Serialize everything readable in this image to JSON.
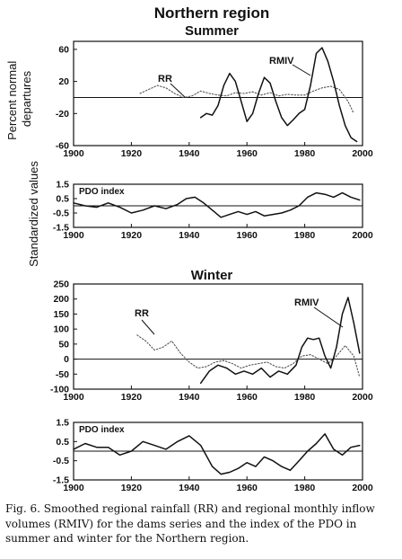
{
  "figure": {
    "title": "Northern region",
    "caption": "Fig. 6. Smoothed regional rainfall (RR) and regional monthly inflow volumes (RMIV) for the dams series and the index of the PDO in summer and winter for the Northern region.",
    "y_label_top": "Percent normal departures",
    "y_label_bottom": "Standardized values",
    "colors": {
      "rr": "#555555",
      "rmiv": "#111111",
      "pdo": "#111111"
    }
  },
  "chart_data": [
    {
      "id": "summer_flow",
      "type": "line",
      "title": "Summer",
      "ylabel": "Percent normal departures",
      "xlim": [
        1900,
        2000
      ],
      "ylim": [
        -60,
        70
      ],
      "xticks": [
        1900,
        1920,
        1940,
        1960,
        1980,
        2000
      ],
      "yticks": [
        -60,
        -20,
        20,
        60
      ],
      "annotations": [
        "RR",
        "RMIV"
      ],
      "series": [
        {
          "name": "RR",
          "style": "dotted",
          "x": [
            1923,
            1926,
            1929,
            1932,
            1935,
            1938,
            1941,
            1944,
            1947,
            1950,
            1953,
            1956,
            1959,
            1962,
            1965,
            1968,
            1971,
            1974,
            1977,
            1980,
            1983,
            1986,
            1989,
            1992,
            1995,
            1997
          ],
          "y": [
            5,
            10,
            15,
            12,
            5,
            0,
            2,
            8,
            5,
            3,
            2,
            6,
            5,
            7,
            3,
            6,
            2,
            4,
            3,
            3,
            8,
            12,
            14,
            10,
            -5,
            -20
          ]
        },
        {
          "name": "RMIV",
          "style": "solid",
          "x": [
            1944,
            1946,
            1948,
            1950,
            1952,
            1954,
            1956,
            1958,
            1960,
            1962,
            1964,
            1966,
            1968,
            1970,
            1972,
            1974,
            1976,
            1978,
            1980,
            1982,
            1984,
            1986,
            1988,
            1990,
            1992,
            1994,
            1996,
            1998
          ],
          "y": [
            -25,
            -20,
            -22,
            -10,
            15,
            30,
            20,
            -5,
            -30,
            -20,
            5,
            25,
            18,
            -5,
            -25,
            -35,
            -28,
            -20,
            -15,
            15,
            55,
            62,
            45,
            20,
            -10,
            -35,
            -50,
            -55
          ]
        }
      ]
    },
    {
      "id": "summer_pdo",
      "type": "line",
      "title": "",
      "annotations": [
        "PDO index"
      ],
      "xlim": [
        1900,
        2000
      ],
      "ylim": [
        -1.5,
        1.5
      ],
      "xticks": [
        1900,
        1920,
        1940,
        1960,
        1980,
        2000
      ],
      "yticks": [
        -1.5,
        -0.5,
        0.5,
        1.5
      ],
      "series": [
        {
          "name": "PDO index",
          "style": "solid",
          "x": [
            1900,
            1904,
            1908,
            1912,
            1916,
            1920,
            1924,
            1928,
            1932,
            1936,
            1939,
            1942,
            1945,
            1948,
            1951,
            1954,
            1957,
            1960,
            1963,
            1966,
            1969,
            1972,
            1975,
            1978,
            1981,
            1984,
            1987,
            1990,
            1993,
            1996,
            1999
          ],
          "y": [
            0.2,
            0.0,
            -0.1,
            0.2,
            -0.1,
            -0.5,
            -0.3,
            0.0,
            -0.2,
            0.1,
            0.5,
            0.6,
            0.2,
            -0.3,
            -0.8,
            -0.6,
            -0.4,
            -0.6,
            -0.4,
            -0.7,
            -0.6,
            -0.5,
            -0.3,
            0.0,
            0.6,
            0.9,
            0.8,
            0.6,
            0.9,
            0.6,
            0.4
          ]
        }
      ]
    },
    {
      "id": "winter_flow",
      "type": "line",
      "title": "Winter",
      "ylabel": "Percent normal departures",
      "xlim": [
        1900,
        2000
      ],
      "ylim": [
        -100,
        250
      ],
      "xticks": [
        1900,
        1920,
        1940,
        1960,
        1980,
        2000
      ],
      "yticks": [
        -100,
        -50,
        0,
        50,
        100,
        150,
        200,
        250
      ],
      "annotations": [
        "RR",
        "RMIV"
      ],
      "series": [
        {
          "name": "RR",
          "style": "dotted",
          "x": [
            1922,
            1925,
            1928,
            1931,
            1934,
            1937,
            1940,
            1943,
            1946,
            1949,
            1952,
            1955,
            1958,
            1961,
            1964,
            1967,
            1970,
            1973,
            1976,
            1979,
            1982,
            1985,
            1988,
            1991,
            1994,
            1997,
            1999
          ],
          "y": [
            80,
            60,
            30,
            40,
            60,
            20,
            -10,
            -30,
            -25,
            -10,
            -5,
            -15,
            -30,
            -20,
            -15,
            -10,
            -25,
            -30,
            -15,
            10,
            15,
            0,
            -15,
            10,
            45,
            10,
            -60
          ]
        },
        {
          "name": "RMIV",
          "style": "solid",
          "x": [
            1944,
            1947,
            1950,
            1953,
            1956,
            1959,
            1962,
            1965,
            1968,
            1971,
            1974,
            1977,
            1979,
            1981,
            1983,
            1985,
            1987,
            1989,
            1991,
            1993,
            1995,
            1997,
            1999
          ],
          "y": [
            -80,
            -40,
            -20,
            -30,
            -50,
            -40,
            -50,
            -30,
            -60,
            -40,
            -50,
            -20,
            40,
            70,
            65,
            70,
            10,
            -30,
            40,
            150,
            205,
            120,
            20
          ]
        }
      ]
    },
    {
      "id": "winter_pdo",
      "type": "line",
      "title": "",
      "annotations": [
        "PDO index"
      ],
      "xlim": [
        1900,
        2000
      ],
      "ylim": [
        -1.5,
        1.5
      ],
      "xticks": [
        1900,
        1920,
        1940,
        1960,
        1980,
        2000
      ],
      "yticks": [
        -1.5,
        -0.5,
        0.5,
        1.5
      ],
      "series": [
        {
          "name": "PDO index",
          "style": "solid",
          "x": [
            1900,
            1904,
            1908,
            1912,
            1916,
            1920,
            1924,
            1928,
            1932,
            1936,
            1940,
            1944,
            1948,
            1951,
            1954,
            1957,
            1960,
            1963,
            1966,
            1969,
            1972,
            1975,
            1978,
            1981,
            1984,
            1987,
            1990,
            1993,
            1996,
            1999
          ],
          "y": [
            0.1,
            0.4,
            0.2,
            0.2,
            -0.2,
            0.0,
            0.5,
            0.3,
            0.1,
            0.5,
            0.8,
            0.3,
            -0.8,
            -1.2,
            -1.1,
            -0.9,
            -0.6,
            -0.8,
            -0.3,
            -0.5,
            -0.8,
            -1.0,
            -0.5,
            0.0,
            0.4,
            0.9,
            0.1,
            -0.2,
            0.2,
            0.3
          ]
        }
      ]
    }
  ]
}
